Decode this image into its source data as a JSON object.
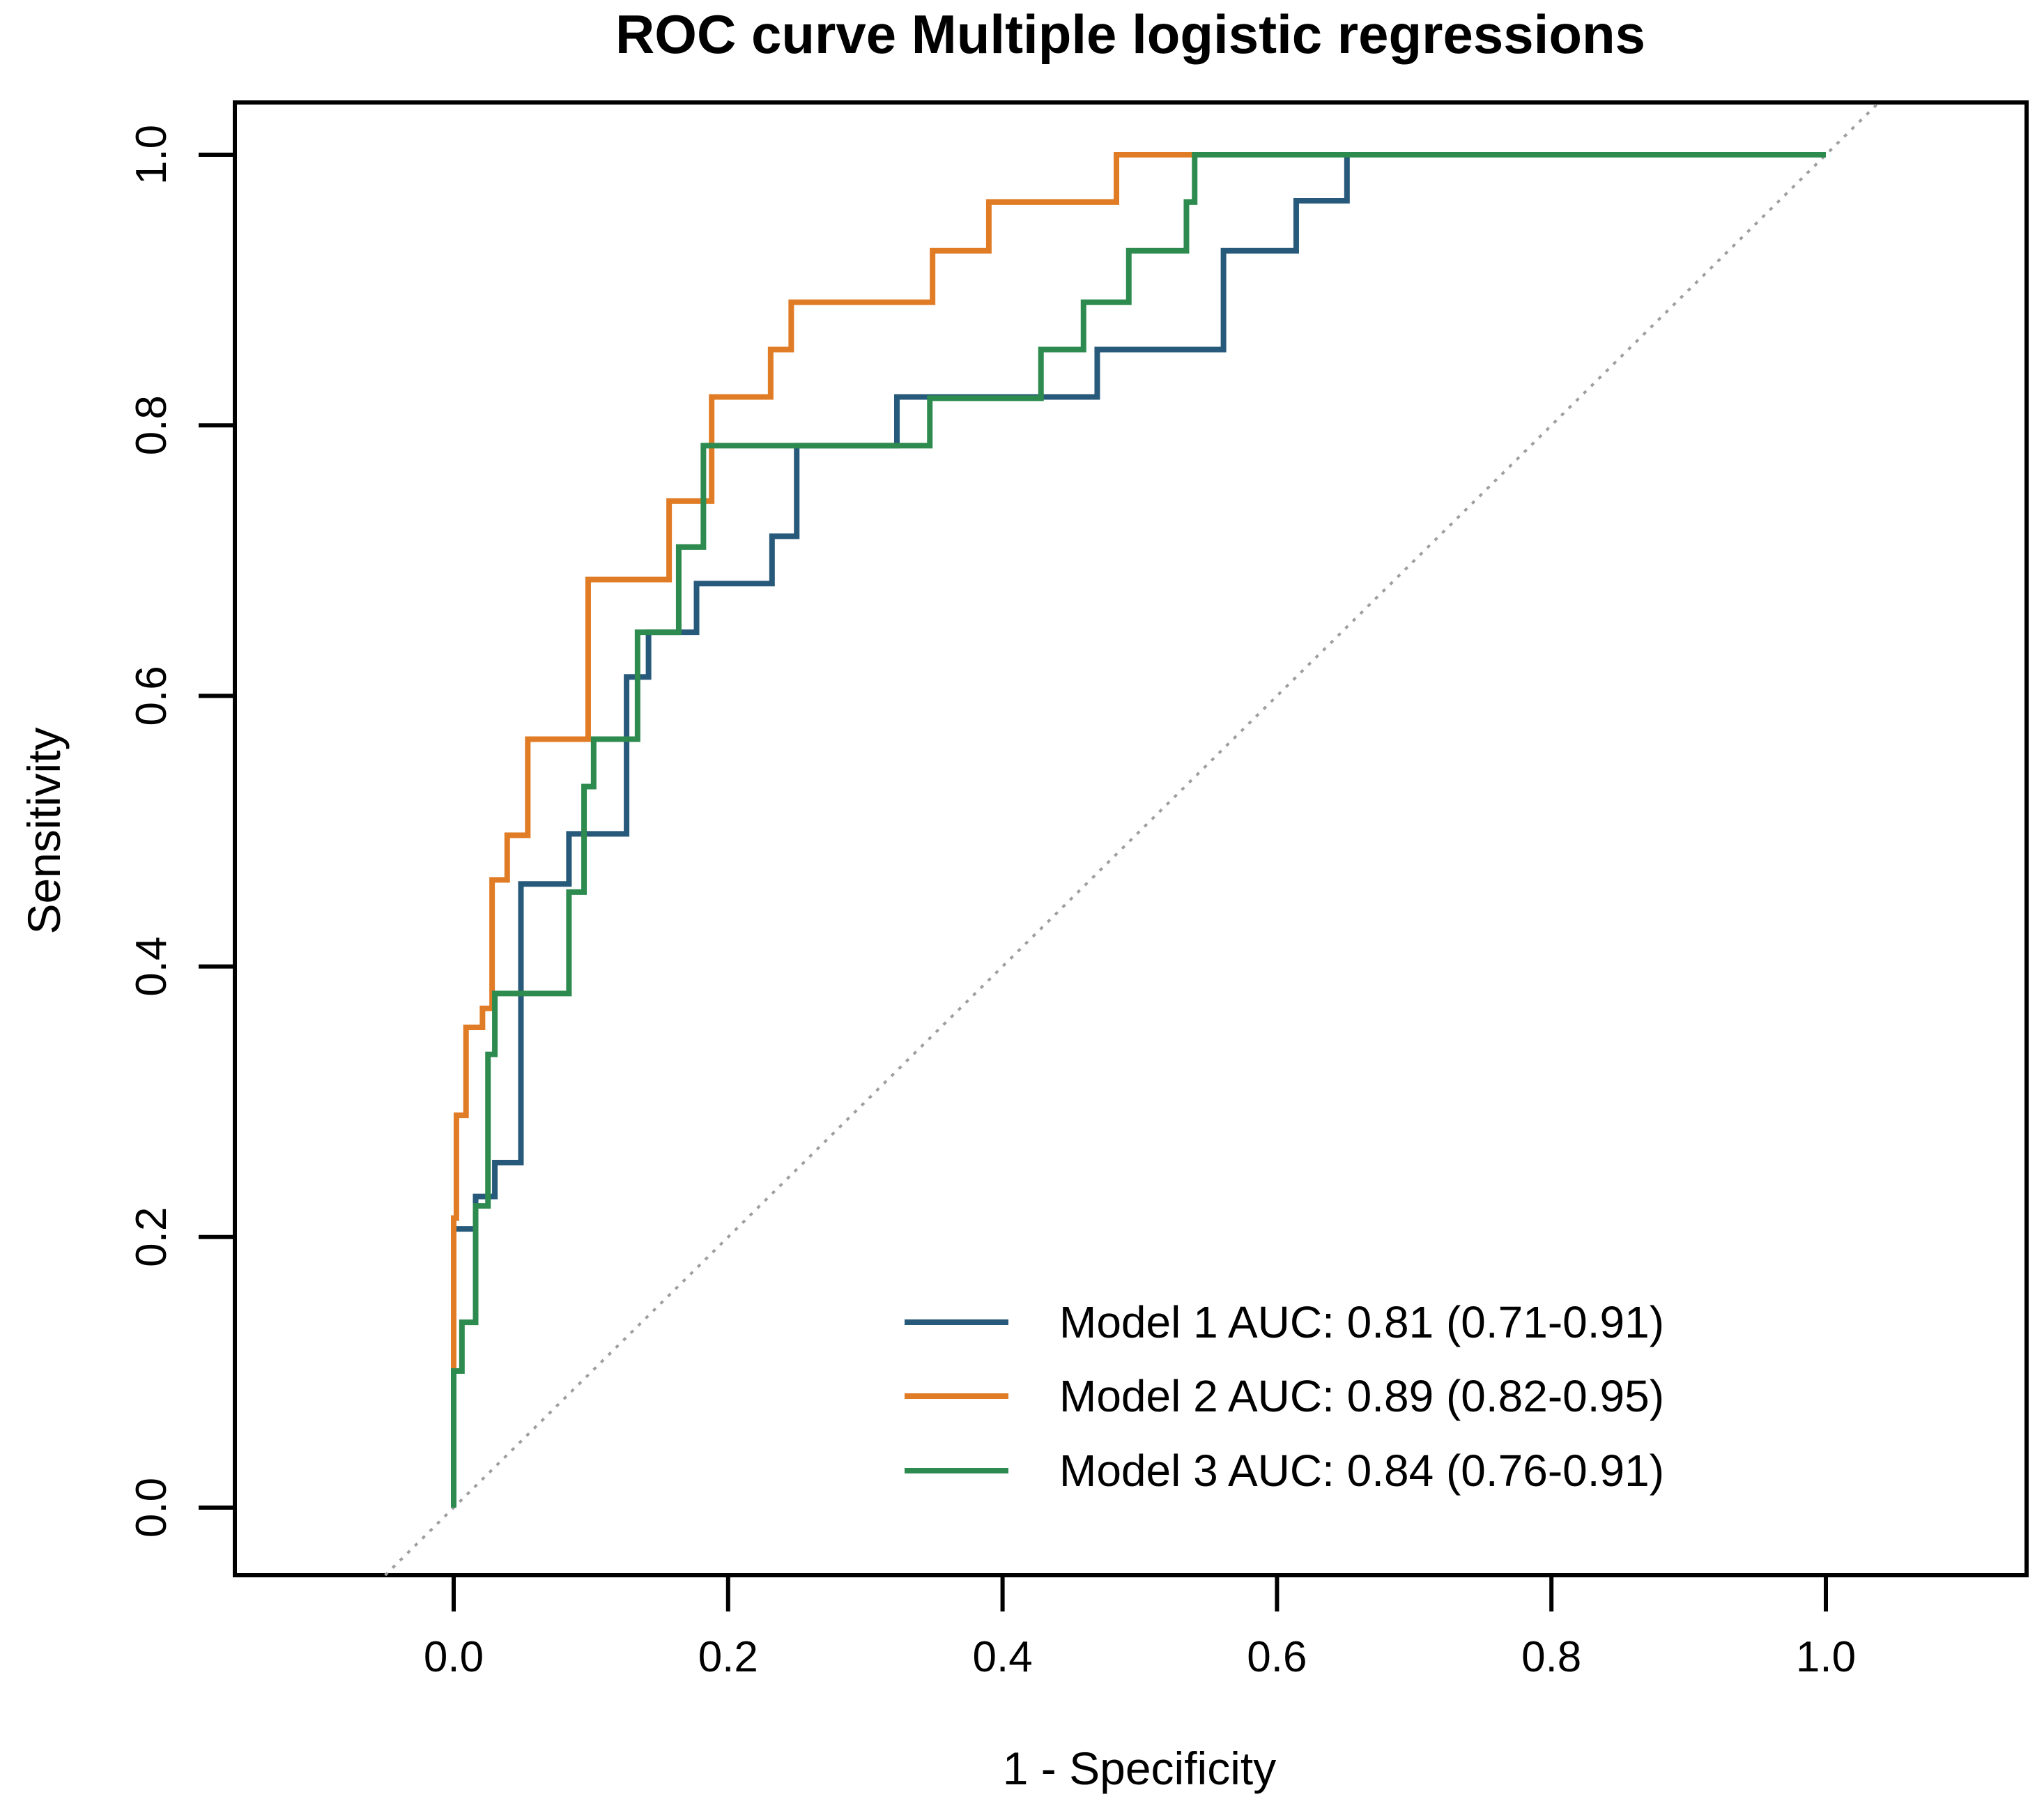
{
  "title": "ROC curve Multiple logistic regressions",
  "chart_data": {
    "type": "line",
    "subtype": "roc-step-curves",
    "title": "ROC curve Multiple logistic regressions",
    "xlabel": "1 - Specificity",
    "ylabel": "Sensitivity",
    "xlim": [
      0,
      1
    ],
    "ylim": [
      0,
      1
    ],
    "grid": false,
    "diagonal_reference_line": true,
    "diagonal_color": "#9e9e9e",
    "axis_color": "#000000",
    "background_color": "#ffffff",
    "legend_position": "bottom-right",
    "x_ticks": [
      {
        "value": 0.0,
        "label": "0.0"
      },
      {
        "value": 0.2,
        "label": "0.2"
      },
      {
        "value": 0.4,
        "label": "0.4"
      },
      {
        "value": 0.6,
        "label": "0.6"
      },
      {
        "value": 0.8,
        "label": "0.8"
      },
      {
        "value": 1.0,
        "label": "1.0"
      }
    ],
    "y_ticks": [
      {
        "value": 0.0,
        "label": "0.0"
      },
      {
        "value": 0.2,
        "label": "0.2"
      },
      {
        "value": 0.4,
        "label": "0.4"
      },
      {
        "value": 0.6,
        "label": "0.6"
      },
      {
        "value": 0.8,
        "label": "0.8"
      },
      {
        "value": 1.0,
        "label": "1.0"
      }
    ],
    "series": [
      {
        "name": "Model 1",
        "auc": 0.81,
        "auc_ci": "0.71-0.91",
        "legend_label": "Model 1 AUC: 0.81 (0.71-0.91)",
        "color": "#27597a",
        "steps": [
          [
            0.0,
            0.0
          ],
          [
            0.0,
            0.206
          ],
          [
            0.016,
            0.206
          ],
          [
            0.016,
            0.23
          ],
          [
            0.03,
            0.23
          ],
          [
            0.03,
            0.255
          ],
          [
            0.049,
            0.255
          ],
          [
            0.049,
            0.461
          ],
          [
            0.084,
            0.461
          ],
          [
            0.084,
            0.498
          ],
          [
            0.126,
            0.498
          ],
          [
            0.126,
            0.614
          ],
          [
            0.142,
            0.614
          ],
          [
            0.142,
            0.647
          ],
          [
            0.177,
            0.647
          ],
          [
            0.177,
            0.683
          ],
          [
            0.232,
            0.683
          ],
          [
            0.232,
            0.718
          ],
          [
            0.25,
            0.718
          ],
          [
            0.25,
            0.785
          ],
          [
            0.323,
            0.785
          ],
          [
            0.323,
            0.821
          ],
          [
            0.469,
            0.821
          ],
          [
            0.469,
            0.856
          ],
          [
            0.561,
            0.856
          ],
          [
            0.561,
            0.929
          ],
          [
            0.614,
            0.929
          ],
          [
            0.614,
            0.966
          ],
          [
            0.651,
            0.966
          ],
          [
            0.651,
            1.0
          ],
          [
            1.0,
            1.0
          ]
        ]
      },
      {
        "name": "Model 2",
        "auc": 0.89,
        "auc_ci": "0.82-0.95",
        "legend_label": "Model 2 AUC: 0.89 (0.82-0.95)",
        "color": "#e07c26",
        "steps": [
          [
            0.0,
            0.0
          ],
          [
            0.0,
            0.214
          ],
          [
            0.002,
            0.214
          ],
          [
            0.002,
            0.29
          ],
          [
            0.009,
            0.29
          ],
          [
            0.009,
            0.355
          ],
          [
            0.021,
            0.355
          ],
          [
            0.021,
            0.369
          ],
          [
            0.028,
            0.369
          ],
          [
            0.028,
            0.464
          ],
          [
            0.039,
            0.464
          ],
          [
            0.039,
            0.497
          ],
          [
            0.054,
            0.497
          ],
          [
            0.054,
            0.568
          ],
          [
            0.098,
            0.568
          ],
          [
            0.098,
            0.686
          ],
          [
            0.157,
            0.686
          ],
          [
            0.157,
            0.744
          ],
          [
            0.188,
            0.744
          ],
          [
            0.188,
            0.821
          ],
          [
            0.231,
            0.821
          ],
          [
            0.231,
            0.856
          ],
          [
            0.246,
            0.856
          ],
          [
            0.246,
            0.891
          ],
          [
            0.349,
            0.891
          ],
          [
            0.349,
            0.929
          ],
          [
            0.39,
            0.929
          ],
          [
            0.39,
            0.965
          ],
          [
            0.483,
            0.965
          ],
          [
            0.483,
            1.0
          ],
          [
            1.0,
            1.0
          ]
        ]
      },
      {
        "name": "Model 3",
        "auc": 0.84,
        "auc_ci": "0.76-0.91",
        "legend_label": "Model 3 AUC: 0.84 (0.76-0.91)",
        "color": "#2e8b4f",
        "steps": [
          [
            0.0,
            0.0
          ],
          [
            0.0,
            0.101
          ],
          [
            0.006,
            0.101
          ],
          [
            0.006,
            0.137
          ],
          [
            0.016,
            0.137
          ],
          [
            0.016,
            0.223
          ],
          [
            0.025,
            0.223
          ],
          [
            0.025,
            0.335
          ],
          [
            0.03,
            0.335
          ],
          [
            0.03,
            0.38
          ],
          [
            0.084,
            0.38
          ],
          [
            0.084,
            0.455
          ],
          [
            0.095,
            0.455
          ],
          [
            0.095,
            0.533
          ],
          [
            0.102,
            0.533
          ],
          [
            0.102,
            0.568
          ],
          [
            0.134,
            0.568
          ],
          [
            0.134,
            0.647
          ],
          [
            0.164,
            0.647
          ],
          [
            0.164,
            0.71
          ],
          [
            0.182,
            0.71
          ],
          [
            0.182,
            0.785
          ],
          [
            0.347,
            0.785
          ],
          [
            0.347,
            0.82
          ],
          [
            0.428,
            0.82
          ],
          [
            0.428,
            0.856
          ],
          [
            0.459,
            0.856
          ],
          [
            0.459,
            0.891
          ],
          [
            0.492,
            0.891
          ],
          [
            0.492,
            0.929
          ],
          [
            0.534,
            0.929
          ],
          [
            0.534,
            0.965
          ],
          [
            0.54,
            0.965
          ],
          [
            0.54,
            1.0
          ],
          [
            1.0,
            1.0
          ]
        ]
      }
    ]
  }
}
